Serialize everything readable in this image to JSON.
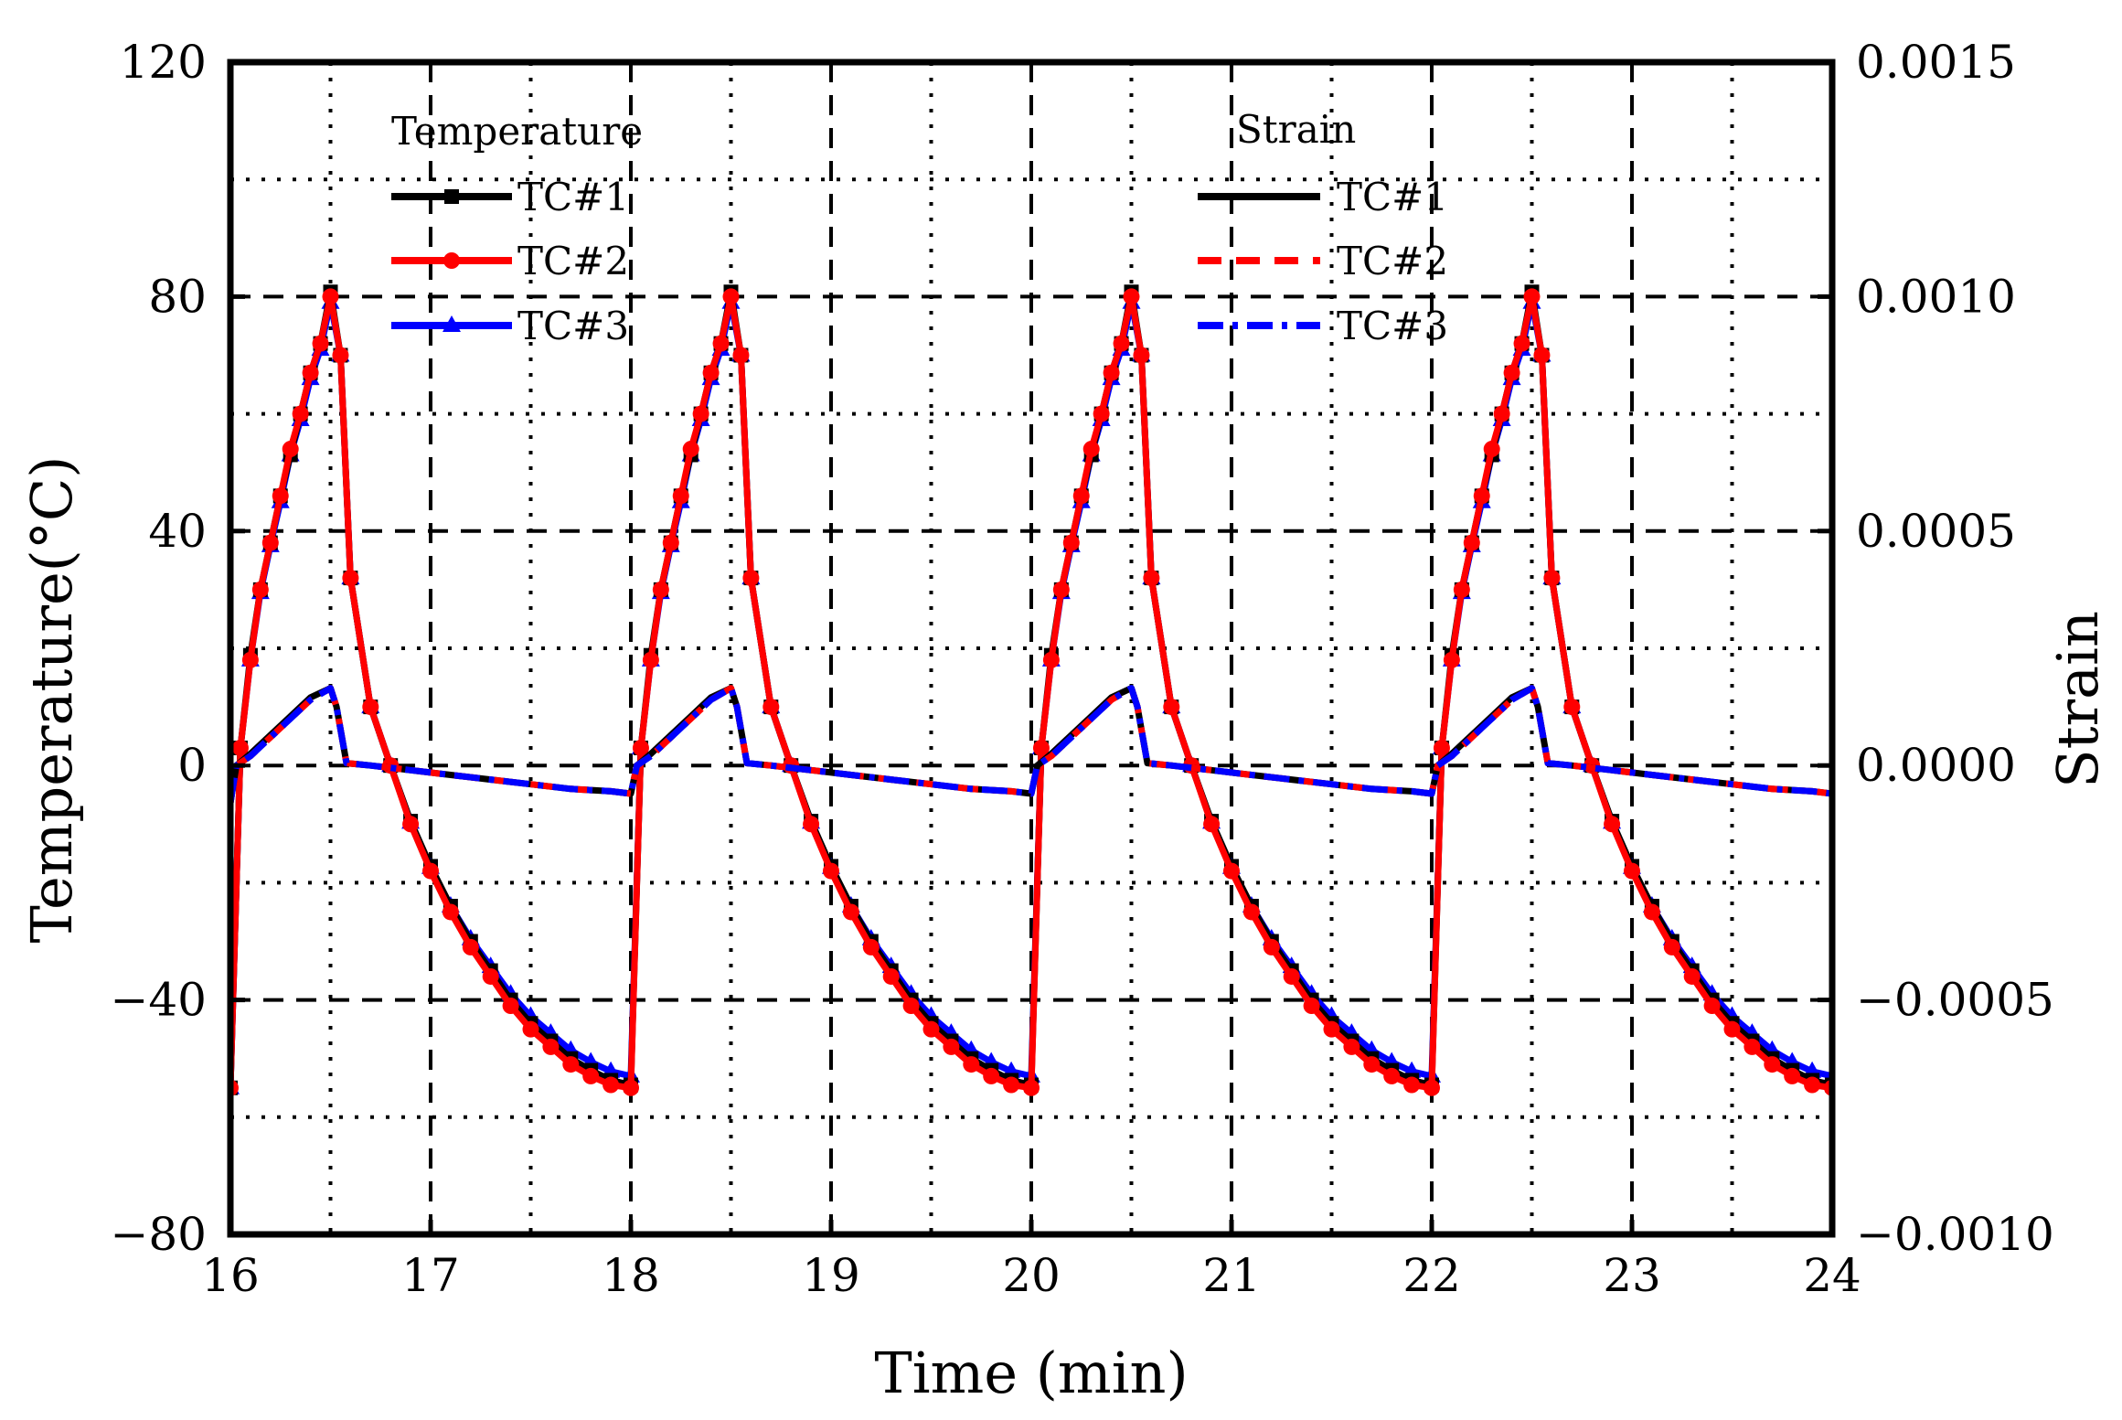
{
  "chart_data": {
    "type": "line",
    "title": "",
    "xlabel": "Time (min)",
    "ylabel": "Temperature(°C)",
    "y2label": "Strain",
    "xlim": [
      16,
      24
    ],
    "ylim": [
      -80,
      120
    ],
    "y2lim": [
      -0.001,
      0.0015
    ],
    "x_ticks": [
      16,
      17,
      18,
      19,
      20,
      21,
      22,
      23,
      24
    ],
    "y_ticks": [
      -80,
      -40,
      0,
      40,
      80,
      120
    ],
    "y_tick_labels": [
      "−80",
      "−40",
      "0",
      "40",
      "80",
      "120"
    ],
    "y2_ticks": [
      -0.001,
      -0.0005,
      0,
      0.0005,
      0.001,
      0.0015
    ],
    "y2_tick_labels": [
      "−0.0010",
      "−0.0005",
      "0.0000",
      "0.0005",
      "0.0010",
      "0.0015"
    ],
    "grid": true,
    "legend_temperature": {
      "title": "Temperature",
      "entries": [
        "TC#1",
        "TC#2",
        "TC#3"
      ],
      "position": "top-left"
    },
    "legend_strain": {
      "title": "Strain",
      "entries": [
        "TC#1",
        "TC#2",
        "TC#3"
      ],
      "position": "top-center"
    },
    "cycle": {
      "period_min": 2,
      "starts": [
        16,
        18,
        20,
        22
      ],
      "temperature_x": [
        0,
        0.05,
        0.1,
        0.15,
        0.2,
        0.25,
        0.3,
        0.35,
        0.4,
        0.45,
        0.5,
        0.55,
        0.6,
        0.7,
        0.8,
        0.9,
        1.0,
        1.1,
        1.2,
        1.3,
        1.4,
        1.5,
        1.6,
        1.7,
        1.8,
        1.9,
        2.0
      ],
      "temperature_y": [
        -55,
        3,
        18,
        30,
        38,
        46,
        54,
        60,
        67,
        72,
        80,
        70,
        32,
        10,
        0,
        -10,
        -18,
        -25,
        -31,
        -36,
        -41,
        -45,
        -48,
        -51,
        -53,
        -54.5,
        -55
      ],
      "strain_x": [
        0,
        0.03,
        0.1,
        0.2,
        0.3,
        0.4,
        0.5,
        0.53,
        0.58,
        0.7,
        0.9,
        1.1,
        1.3,
        1.5,
        1.7,
        1.9,
        2.0
      ],
      "strain_y": [
        -8e-05,
        0.0,
        2e-05,
        6e-05,
        0.0001,
        0.00014,
        0.000165,
        0.000125,
        5e-06,
        0.0,
        -1e-05,
        -2e-05,
        -3e-05,
        -4e-05,
        -5e-05,
        -5.5e-05,
        -6e-05
      ]
    },
    "series": [
      {
        "name": "TC#1",
        "axis": "temperature",
        "color": "#000000",
        "marker": "square",
        "line": "solid",
        "offsets": [
          0,
          0,
          0.8,
          0,
          0,
          0,
          -1,
          0,
          0,
          0,
          0.8,
          0,
          0,
          0,
          0,
          0.5,
          0.8,
          1,
          1,
          1,
          1,
          1,
          1,
          1,
          1,
          0.8,
          0.5
        ]
      },
      {
        "name": "TC#2",
        "axis": "temperature",
        "color": "#ff0000",
        "marker": "circle",
        "line": "solid",
        "offsets": [
          0,
          0,
          0,
          0,
          0,
          0,
          0,
          0,
          0,
          0,
          0,
          0,
          0,
          0,
          0,
          0,
          0,
          0,
          0,
          0,
          0,
          0,
          0,
          0,
          0,
          0,
          0
        ]
      },
      {
        "name": "TC#3",
        "axis": "temperature",
        "color": "#0000ff",
        "marker": "triangle",
        "line": "solid",
        "offsets": [
          0,
          0,
          0,
          -0.5,
          -0.5,
          -1,
          -1,
          -1,
          -1,
          -1,
          -1,
          0,
          0,
          0,
          0,
          0.3,
          0.6,
          1,
          1.4,
          1.7,
          2,
          2.2,
          2.3,
          2.4,
          2.4,
          2.3,
          2
        ]
      },
      {
        "name": "TC#1",
        "axis": "strain",
        "color": "#000000",
        "line": "solid",
        "offsets": [
          0,
          0,
          5e-06,
          5e-06,
          5e-06,
          5e-06,
          0,
          0,
          0,
          0,
          0,
          0,
          0,
          0,
          0,
          0,
          0
        ]
      },
      {
        "name": "TC#2",
        "axis": "strain",
        "color": "#ff0000",
        "line": "dashed",
        "offsets": [
          0,
          0,
          0,
          0,
          0,
          0,
          0,
          0,
          0,
          0,
          0,
          0,
          0,
          0,
          0,
          0,
          0
        ]
      },
      {
        "name": "TC#3",
        "axis": "strain",
        "color": "#0000ff",
        "line": "dashdot",
        "offsets": [
          0,
          0,
          0,
          0,
          0,
          0,
          0,
          0,
          0,
          0,
          0,
          0,
          0,
          0,
          0,
          0,
          0
        ]
      }
    ]
  }
}
